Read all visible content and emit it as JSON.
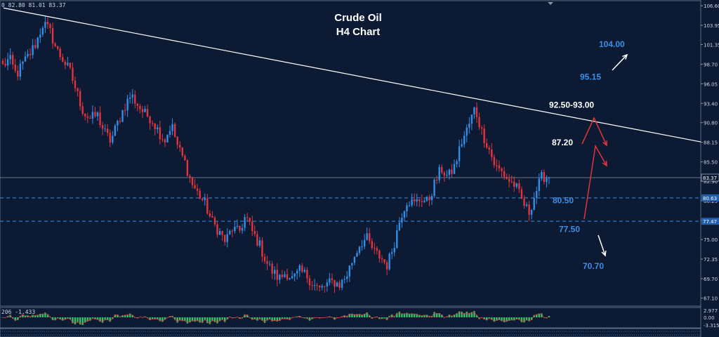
{
  "header": {
    "ohlc_text": "0 82.80 81.01 83.37"
  },
  "chart_data": {
    "type": "candlestick",
    "title": "Crude Oil",
    "subtitle": "H4 Chart",
    "price_axis": {
      "ylim": [
        66.0,
        107.0
      ],
      "ticks": [
        "106.60",
        "103.95",
        "101.35",
        "98.70",
        "96.05",
        "93.40",
        "90.80",
        "88.15",
        "85.50",
        "82.90",
        "80.25",
        "77.60",
        "75.00",
        "72.35",
        "69.70",
        "67.10"
      ],
      "current_price_label": "83.37",
      "level_tags": [
        "80.63",
        "77.47"
      ]
    },
    "path_closes": [
      98.5,
      99.4,
      97.2,
      98.8,
      100.1,
      101.7,
      104.3,
      103.1,
      100.6,
      99.2,
      97.6,
      94.8,
      92.1,
      91.3,
      91.9,
      89.6,
      88.3,
      90.7,
      92.9,
      94.6,
      93.2,
      92.0,
      91.4,
      89.8,
      88.4,
      90.6,
      87.4,
      85.4,
      82.6,
      81.1,
      79.8,
      77.4,
      76.2,
      74.7,
      76.5,
      75.9,
      78.2,
      76.0,
      74.4,
      72.1,
      70.6,
      69.7,
      70.6,
      69.6,
      70.7,
      70.2,
      69.0,
      68.2,
      68.9,
      69.3,
      68.9,
      70.2,
      72.6,
      74.5,
      75.1,
      73.4,
      72.6,
      71.5,
      74.4,
      78.2,
      80.4,
      79.8,
      80.6,
      80.0,
      82.5,
      84.6,
      83.4,
      84.9,
      88.1,
      90.2,
      92.8,
      89.6,
      87.5,
      84.9,
      84.1,
      83.0,
      82.3,
      80.2,
      78.6,
      81.4,
      83.6,
      83.37
    ],
    "levels": [
      {
        "label": "80.50",
        "value": 80.63,
        "color": "#3d8ee6",
        "style": "dashed"
      },
      {
        "label": "77.50",
        "value": 77.47,
        "color": "#3d8ee6",
        "style": "dashed"
      }
    ],
    "current_price_line": {
      "value": 83.37,
      "color": "#8a97ad"
    },
    "trendline": {
      "from": {
        "x_frac": 0.005,
        "price": 106.3
      },
      "to": {
        "x_frac": 1.0,
        "price": 88.2
      },
      "color": "#ffffff"
    },
    "annotations": [
      {
        "text": "104.00",
        "price": 101.4,
        "color": "#3d8ee6"
      },
      {
        "text": "95.15",
        "price": 97.0,
        "color": "#3d8ee6"
      },
      {
        "text": "92.50-93.00",
        "price": 93.2,
        "color": "#ffffff"
      },
      {
        "text": "87.20",
        "price": 88.1,
        "color": "#ffffff"
      },
      {
        "text": "80.50",
        "price": 80.3,
        "color": "#3d8ee6"
      },
      {
        "text": "77.50",
        "price": 76.4,
        "color": "#3d8ee6"
      },
      {
        "text": "70.70",
        "price": 71.4,
        "color": "#3d8ee6"
      }
    ],
    "candle_colors": {
      "up": "#2f8fe8",
      "down": "#e2343d"
    },
    "indicator": {
      "value_text": "206 -1.433",
      "ticks": [
        "2.977",
        "0.00",
        "-3.315"
      ],
      "bar_color": "#33c46a",
      "signal_color": "#e2343d"
    }
  }
}
